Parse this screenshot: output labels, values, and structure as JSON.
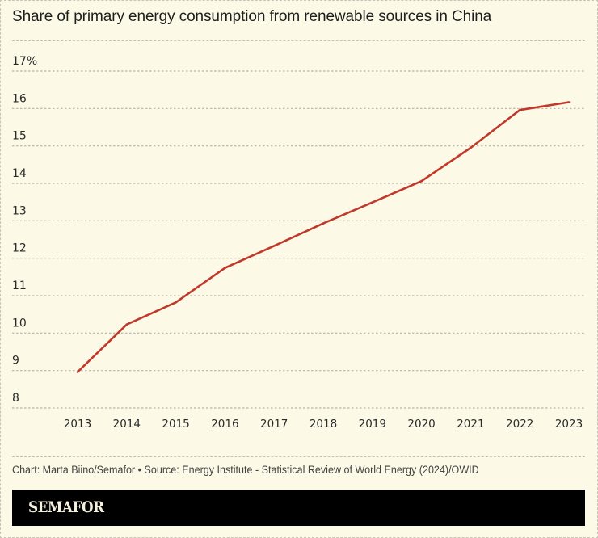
{
  "chart_data": {
    "type": "line",
    "title": "Share of primary energy consumption from renewable sources in China",
    "xlabel": "",
    "ylabel": "",
    "x": [
      2013,
      2014,
      2015,
      2016,
      2017,
      2018,
      2019,
      2020,
      2021,
      2022,
      2023
    ],
    "x_tick_labels": [
      "2013",
      "2014",
      "2015",
      "2016",
      "2017",
      "2018",
      "2019",
      "2020",
      "2021",
      "2022",
      "2023"
    ],
    "series": [
      {
        "name": "China",
        "color": "#c0392b",
        "values": [
          8.96,
          10.23,
          10.82,
          11.74,
          12.33,
          12.93,
          13.49,
          14.06,
          14.95,
          15.96,
          16.17
        ]
      }
    ],
    "ylim": [
      8,
      17
    ],
    "y_ticks": [
      8,
      9,
      10,
      11,
      12,
      13,
      14,
      15,
      16,
      17
    ],
    "y_tick_labels": [
      "8",
      "9",
      "10",
      "11",
      "12",
      "13",
      "14",
      "15",
      "16",
      "17%"
    ],
    "grid": true,
    "grid_style": "dashed-horizontal",
    "legend": "none"
  },
  "footer": {
    "credit": "Chart: Marta Biino/Semafor • Source: Energy Institute - Statistical Review of World Energy (2024)/OWID",
    "brand": "SEMAFOR"
  },
  "colors": {
    "background": "#fcf9e6",
    "line": "#c0392b",
    "grid": "#b8b6aa",
    "brand_bar": "#000000",
    "brand_text": "#f4f0dc"
  }
}
